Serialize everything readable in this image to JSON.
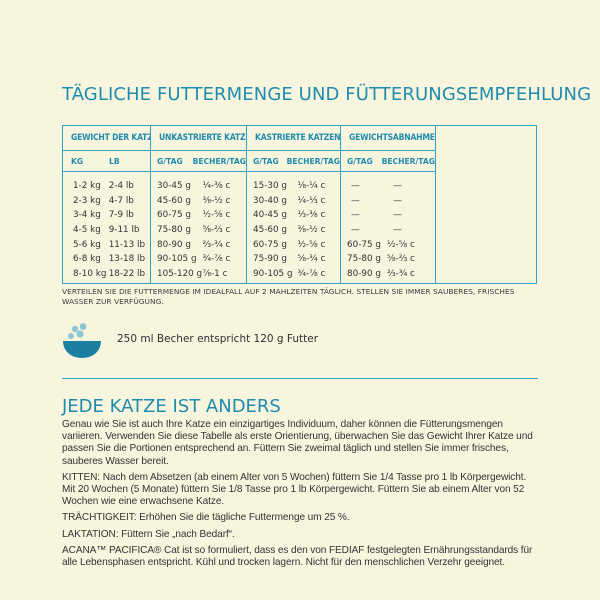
{
  "title": "TÄGLICHE FUTTERMENGE UND FÜTTERUNGSEMPFEHLUNG",
  "table": {
    "groups": {
      "weight": "GEWICHT DER KATZE",
      "unneutered": "UNKASTRIERTE KATZE",
      "neutered": "KASTRIERTE KATZEN",
      "weightloss": "GEWICHTSABNAHME"
    },
    "subheads": {
      "kg": "KG",
      "lb": "LB",
      "g1": "G/TAG",
      "cup1": "BECHER/TAG",
      "g2": "G/TAG",
      "cup2": "BECHER/TAG",
      "g3": "G/TAG",
      "cup3": "BECHER/TAG"
    },
    "rows": [
      {
        "kg": "1-2 kg",
        "lb": "2-4 lb",
        "g1": "30-45 g",
        "cup1": "¹⁄₄-³⁄₈ c",
        "g2": "15-30 g",
        "cup2": "¹⁄₈-¹⁄₄ c",
        "g3": "—",
        "cup3": "—"
      },
      {
        "kg": "2-3 kg",
        "lb": "4-7 lb",
        "g1": "45-60 g",
        "cup1": "³⁄₈-¹⁄₂ c",
        "g2": "30-40 g",
        "cup2": "¹⁄₄-¹⁄₃ c",
        "g3": "—",
        "cup3": "—"
      },
      {
        "kg": "3-4 kg",
        "lb": "7-9 lb",
        "g1": "60-75 g",
        "cup1": "¹⁄₂-⁵⁄₈ c",
        "g2": "40-45 g",
        "cup2": "¹⁄₃-³⁄₈ c",
        "g3": "—",
        "cup3": "—"
      },
      {
        "kg": "4-5 kg",
        "lb": "9-11 lb",
        "g1": "75-80 g",
        "cup1": "⁵⁄₈-²⁄₃ c",
        "g2": "45-60 g",
        "cup2": "³⁄₈-¹⁄₂ c",
        "g3": "—",
        "cup3": "—"
      },
      {
        "kg": "5-6 kg",
        "lb": "11-13 lb",
        "g1": "80-90 g",
        "cup1": "²⁄₃-³⁄₄ c",
        "g2": "60-75 g",
        "cup2": "¹⁄₂-⁵⁄₈ c",
        "g3": "60-75 g",
        "cup3": "¹⁄₂-⁵⁄₈ c"
      },
      {
        "kg": "6-8 kg",
        "lb": "13-18 lb",
        "g1": "90-105 g",
        "cup1": "³⁄₄-⁷⁄₈ c",
        "g2": "75-90 g",
        "cup2": "⁵⁄₈-³⁄₄ c",
        "g3": "75-80 g",
        "cup3": "⁵⁄₈-²⁄₃ c"
      },
      {
        "kg": "8-10 kg",
        "lb": "18-22 lb",
        "g1": "105-120 g",
        "cup1": "⁷⁄₈-1 c",
        "g2": "90-105 g",
        "cup2": "³⁄₄-⁷⁄₈ c",
        "g3": "80-90 g",
        "cup3": "²⁄₃-³⁄₄ c"
      }
    ]
  },
  "note": "VERTEILEN SIE DIE FUTTERMENGE IM IDEALFALL AUF 2 MAHLZEITEN TÄGLICH. STELLEN SIE IMMER SAUBERES, FRISCHES WASSER ZUR VERFÜGUNG.",
  "scoop": {
    "icon": "food-bowl-icon",
    "text": "250 ml Becher entspricht 120 g Futter"
  },
  "section2": {
    "title": "JEDE KATZE IST ANDERS",
    "paragraphs": [
      "Genau wie Sie ist auch Ihre Katze ein einzigartiges Individuum, daher können die Fütterungsmengen variieren. Verwenden Sie diese Tabelle als erste Orientierung, überwachen Sie das Gewicht Ihrer Katze und passen Sie die Portionen entsprechend an. Füttern Sie zweimal täglich und stellen Sie immer frisches, sauberes Wasser bereit.",
      "KITTEN: Nach dem Absetzen (ab einem Alter von 5 Wochen) füttern Sie 1/4 Tasse pro 1 lb Körpergewicht. Mit 20 Wochen (5 Monate) füttern Sie 1/8 Tasse pro 1 lb Körpergewicht. Füttern Sie ab einem Alter von 52 Wochen wie eine erwachsene Katze.",
      "TRÄCHTIGKEIT: Erhöhen Sie die tägliche Futtermenge um 25 %.",
      "LAKTATION: Füttern Sie „nach Bedarf“.",
      "ACANA™ PACIFICA® Cat ist so formuliert, dass es den von FEDIAF festgelegten Ernährungsstandards für alle Lebensphasen entspricht. Kühl und trocken lagern. Nicht für den menschlichen Verzehr geeignet."
    ]
  },
  "colors": {
    "accent": "#1f8cae",
    "background": "#f8f5df",
    "text": "#333333"
  }
}
